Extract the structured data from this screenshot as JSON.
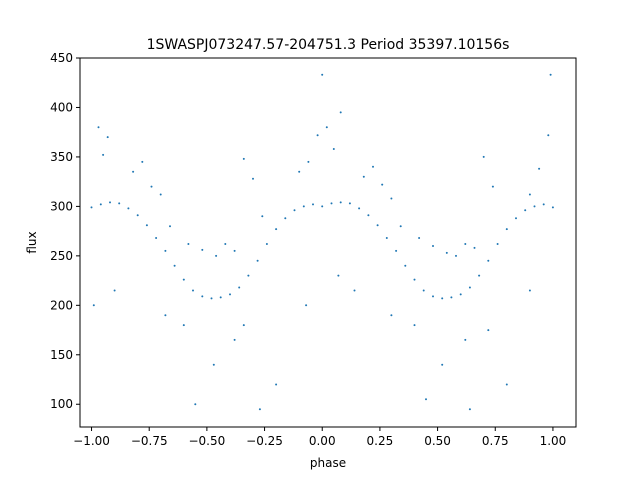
{
  "chart_data": {
    "type": "scatter",
    "title": "1SWASPJ073247.57-204751.3 Period 35397.10156s",
    "xlabel": "phase",
    "ylabel": "flux",
    "xlim": [
      -1.05,
      1.1
    ],
    "ylim": [
      77,
      450
    ],
    "xticks": [
      -1.0,
      -0.75,
      -0.5,
      -0.25,
      0.0,
      0.25,
      0.5,
      0.75,
      1.0
    ],
    "xtick_labels": [
      "−1.00",
      "−0.75",
      "−0.50",
      "−0.25",
      "0.00",
      "0.25",
      "0.50",
      "0.75",
      "1.00"
    ],
    "yticks": [
      100,
      150,
      200,
      250,
      300,
      350,
      400,
      450
    ],
    "ytick_labels": [
      "100",
      "150",
      "200",
      "250",
      "300",
      "350",
      "400",
      "450"
    ],
    "grid": false,
    "series": [
      {
        "color": "#1f77b4",
        "marker": "point",
        "x": [
          -1.0,
          -0.96,
          -0.92,
          -0.88,
          -0.84,
          -0.8,
          -0.76,
          -0.72,
          -0.68,
          -0.64,
          -0.6,
          -0.56,
          -0.52,
          -0.48,
          -0.44,
          -0.4,
          -0.36,
          -0.32,
          -0.28,
          -0.24,
          -0.2,
          -0.16,
          -0.12,
          -0.08,
          -0.04,
          0.0,
          0.04,
          0.08,
          0.12,
          0.16,
          0.2,
          0.24,
          0.28,
          0.32,
          0.36,
          0.4,
          0.44,
          0.48,
          0.52,
          0.56,
          0.6,
          0.64,
          0.68,
          0.72,
          0.76,
          0.8,
          0.84,
          0.88,
          0.92,
          0.96,
          1.0
        ],
        "y": [
          299,
          302,
          304,
          303,
          298,
          291,
          281,
          268,
          255,
          240,
          226,
          215,
          209,
          207,
          208,
          211,
          218,
          230,
          245,
          262,
          277,
          288,
          296,
          300,
          302,
          300,
          303,
          304,
          303,
          298,
          291,
          281,
          268,
          255,
          240,
          226,
          215,
          209,
          207,
          208,
          211,
          218,
          230,
          245,
          262,
          277,
          288,
          296,
          300,
          302,
          299
        ]
      },
      {
        "color": "#1f77b4",
        "marker": "point",
        "x": [
          -0.97,
          -0.95,
          -0.93,
          -0.82,
          -0.78,
          -0.74,
          -0.7,
          -0.66,
          -0.58,
          -0.52,
          -0.46,
          -0.42,
          -0.38,
          -0.34,
          -0.3,
          -0.26,
          -0.1,
          -0.06,
          -0.02,
          0.02,
          0.05,
          0.08,
          0.18,
          0.22,
          0.26,
          0.3,
          0.34,
          0.42,
          0.48,
          0.54,
          0.58,
          0.62,
          0.66,
          0.7,
          0.74,
          0.9,
          0.94,
          0.98
        ],
        "y": [
          380,
          352,
          370,
          335,
          345,
          320,
          312,
          280,
          262,
          256,
          250,
          262,
          255,
          348,
          328,
          290,
          335,
          345,
          372,
          380,
          358,
          395,
          330,
          340,
          322,
          308,
          280,
          268,
          260,
          253,
          250,
          262,
          258,
          350,
          320,
          312,
          338,
          372
        ]
      },
      {
        "color": "#1f77b4",
        "marker": "point",
        "x": [
          -0.99,
          -0.9,
          -0.68,
          -0.6,
          -0.55,
          -0.47,
          -0.38,
          -0.34,
          -0.27,
          -0.2,
          -0.07,
          0.0,
          0.07,
          0.14,
          0.3,
          0.4,
          0.45,
          0.52,
          0.62,
          0.64,
          0.72,
          0.8,
          0.9,
          0.99
        ],
        "y": [
          200,
          215,
          190,
          180,
          100,
          140,
          165,
          180,
          95,
          120,
          200,
          433,
          230,
          215,
          190,
          180,
          105,
          140,
          165,
          95,
          175,
          120,
          215,
          433
        ]
      }
    ]
  }
}
